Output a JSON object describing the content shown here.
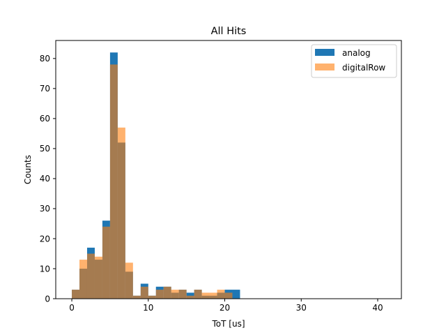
{
  "chart_data": {
    "type": "bar",
    "title": "All Hits",
    "xlabel": "ToT [us]",
    "ylabel": "Counts",
    "xlim": [
      -2.1,
      43.1
    ],
    "ylim": [
      0,
      86
    ],
    "xticks": [
      0,
      10,
      20,
      30,
      40
    ],
    "yticks": [
      0,
      10,
      20,
      30,
      40,
      50,
      60,
      70,
      80
    ],
    "bin_width": 1,
    "bin_starts": [
      0,
      1,
      2,
      3,
      4,
      5,
      6,
      7,
      8,
      9,
      10,
      11,
      12,
      13,
      14,
      15,
      16,
      17,
      18,
      19,
      20,
      21,
      22,
      23,
      24,
      25,
      26,
      27,
      28,
      29,
      30,
      31,
      32,
      33,
      34,
      35,
      36,
      37,
      38,
      39,
      40,
      41
    ],
    "legend": {
      "position": "top-right"
    },
    "series": [
      {
        "name": "analog",
        "color": "#1f77b4",
        "opacity": 1,
        "values": [
          3,
          10,
          17,
          13,
          26,
          82,
          52,
          9,
          1,
          5,
          1,
          4,
          4,
          2,
          3,
          2,
          3,
          1,
          1,
          2,
          3,
          3,
          0,
          0,
          0,
          0,
          0,
          0,
          0,
          0,
          0,
          0,
          0,
          0,
          0,
          0,
          0,
          0,
          0,
          0,
          0,
          0
        ]
      },
      {
        "name": "digitalRow",
        "color": "#ff7f0e",
        "opacity": 0.6,
        "values": [
          3,
          13,
          15,
          14,
          24,
          78,
          57,
          12,
          1,
          4,
          1,
          3,
          4,
          3,
          3,
          1,
          3,
          2,
          2,
          3,
          2,
          0,
          0,
          0,
          0,
          0,
          0,
          0,
          0,
          0,
          0,
          0,
          0,
          0,
          0,
          0,
          0,
          0,
          0,
          0,
          0,
          0
        ]
      }
    ]
  }
}
